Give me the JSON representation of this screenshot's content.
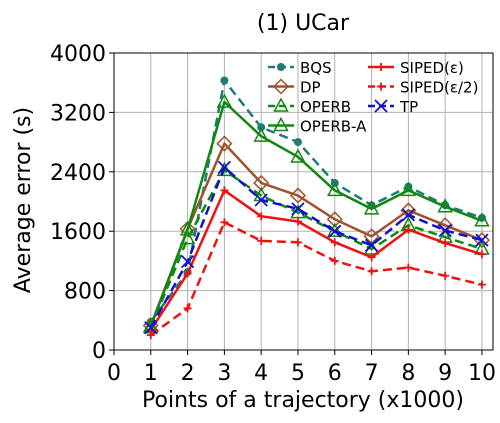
{
  "chart_data": {
    "type": "line",
    "title": "(1) UCar",
    "xlabel": "Points of a trajectory (x1000)",
    "ylabel": "Average error (s)",
    "xlim": [
      0,
      10.3
    ],
    "ylim": [
      0,
      4000
    ],
    "xticks": [
      0,
      1,
      2,
      3,
      4,
      5,
      6,
      7,
      8,
      9,
      10
    ],
    "yticks": [
      0,
      800,
      1600,
      2400,
      3200,
      4000
    ],
    "grid": true,
    "legend_position": "top-right",
    "x": [
      1,
      2,
      3,
      4,
      5,
      6,
      7,
      8,
      9,
      10
    ],
    "series": [
      {
        "name": "BQS",
        "values": [
          380,
          1050,
          3630,
          3000,
          2800,
          2250,
          1950,
          2200,
          1950,
          1780
        ],
        "color": "#1f7a7a",
        "dash": "dashed",
        "marker": "dot"
      },
      {
        "name": "DP",
        "values": [
          330,
          1630,
          2780,
          2250,
          2080,
          1760,
          1530,
          1880,
          1680,
          1480
        ],
        "color": "#a0522d",
        "dash": "solid",
        "marker": "diamond"
      },
      {
        "name": "OPERB",
        "values": [
          300,
          1500,
          2420,
          2080,
          1850,
          1600,
          1360,
          1680,
          1520,
          1360
        ],
        "color": "#118811",
        "dash": "dashed",
        "marker": "triangle"
      },
      {
        "name": "OPERB-A",
        "values": [
          320,
          1620,
          3340,
          2880,
          2600,
          2150,
          1900,
          2150,
          1930,
          1740
        ],
        "color": "#118811",
        "dash": "solid",
        "marker": "triangle"
      },
      {
        "name": "SIPED(ε)",
        "values": [
          270,
          1030,
          2150,
          1800,
          1730,
          1450,
          1250,
          1620,
          1440,
          1290
        ],
        "color": "#ee1111",
        "dash": "solid",
        "marker": "plus"
      },
      {
        "name": "SIPED(ε/2)",
        "values": [
          200,
          560,
          1720,
          1470,
          1450,
          1200,
          1060,
          1110,
          1000,
          880
        ],
        "color": "#ee1111",
        "dash": "dashed",
        "marker": "plus"
      },
      {
        "name": "TP",
        "values": [
          300,
          1190,
          2460,
          2020,
          1900,
          1600,
          1410,
          1820,
          1610,
          1480
        ],
        "color": "#1111cc",
        "dash": "dashed",
        "marker": "x"
      }
    ]
  }
}
